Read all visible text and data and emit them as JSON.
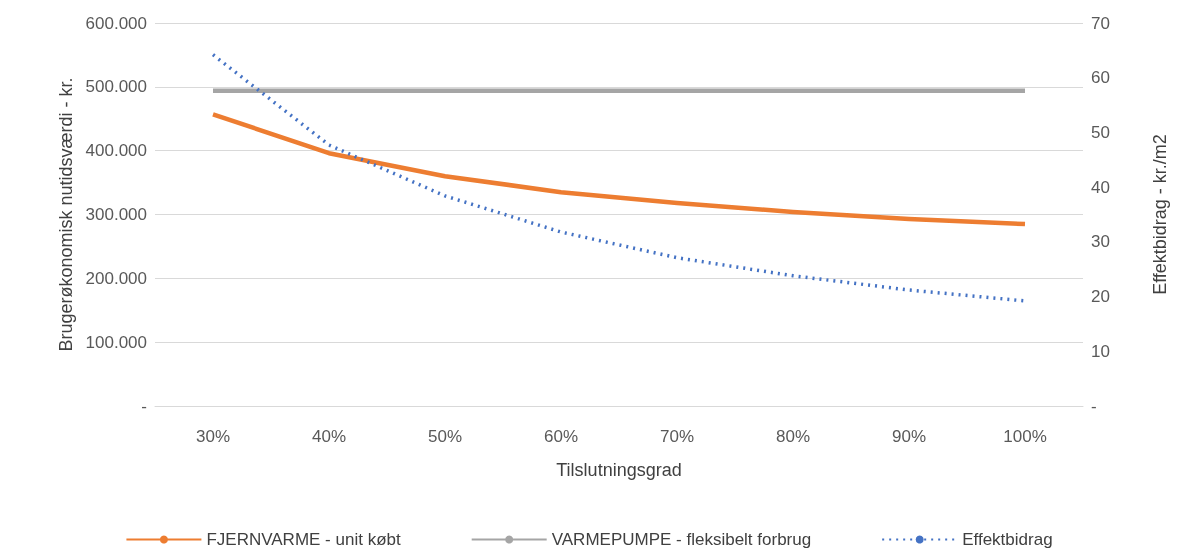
{
  "chart_data": {
    "type": "line",
    "xlabel": "Tilslutningsgrad",
    "ylabel": "Brugerøkonomisk nutidsværdi - kr.",
    "y2label": "Effektbidrag - kr./m2",
    "categories": [
      "30%",
      "40%",
      "50%",
      "60%",
      "70%",
      "80%",
      "90%",
      "100%"
    ],
    "series": [
      {
        "name": "FJERNVARME - unit købt",
        "color": "#ed7d31",
        "line_style": "solid",
        "values": [
          457000,
          396000,
          360000,
          335000,
          318000,
          304000,
          293000,
          285000
        ]
      },
      {
        "name": "VARMEPUMPE - fleksibelt forbrug",
        "color": "#a5a5a5",
        "line_style": "solid",
        "values": [
          494000,
          494000,
          494000,
          494000,
          494000,
          494000,
          494000,
          494000
        ]
      },
      {
        "name": "Effektbidrag",
        "color": "#4472c4",
        "line_style": "dotted",
        "axis": "y2",
        "values": [
          64.2,
          47.7,
          38.4,
          31.8,
          27.1,
          23.8,
          21.2,
          19.2
        ]
      }
    ],
    "ylim": [
      0,
      600000
    ],
    "yticks": [
      {
        "value": 0,
        "label": "-"
      },
      {
        "value": 100000,
        "label": "100.000"
      },
      {
        "value": 200000,
        "label": "200.000"
      },
      {
        "value": 300000,
        "label": "300.000"
      },
      {
        "value": 400000,
        "label": "400.000"
      },
      {
        "value": 500000,
        "label": "500.000"
      },
      {
        "value": 600000,
        "label": "600.000"
      }
    ],
    "y2lim": [
      0,
      70
    ],
    "y2ticks": [
      {
        "value": 0,
        "label": "-"
      },
      10,
      20,
      30,
      40,
      50,
      60,
      70
    ],
    "grid": "y",
    "legend": "bottom",
    "marker": "none"
  }
}
